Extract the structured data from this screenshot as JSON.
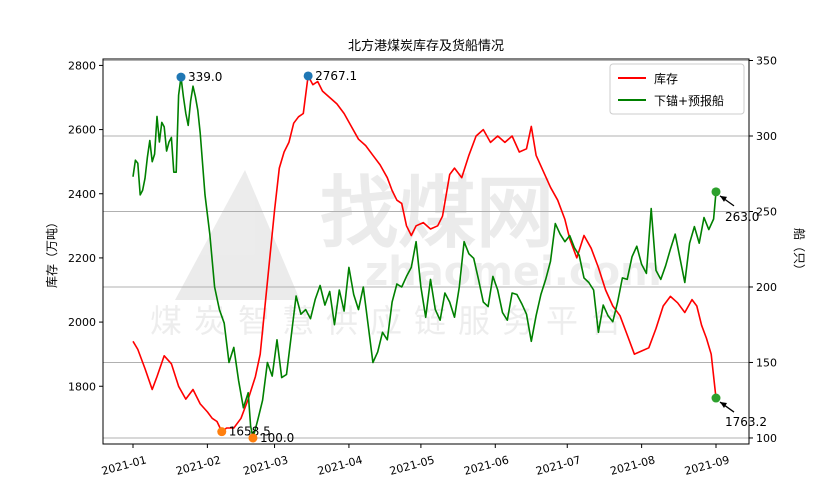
{
  "chart_data": {
    "type": "line",
    "title": "北方港煤炭库存及货船情况",
    "ylabel_left": "库存（万吨）",
    "ylabel_right": "船（只）",
    "xlabel": "",
    "watermark": {
      "brand": "找煤网",
      "domain": "zhaomei.com",
      "slogan": "煤炭智慧供应链服务平台"
    },
    "legend": {
      "position": "top-right",
      "items": [
        "库存",
        "下锚+预报船"
      ]
    },
    "x_ticks": [
      "2021-01",
      "2021-02",
      "2021-03",
      "2021-04",
      "2021-05",
      "2021-06",
      "2021-07",
      "2021-08",
      "2021-09"
    ],
    "y_left": {
      "ticks": [
        1800,
        2000,
        2200,
        2400,
        2600,
        2800
      ],
      "range": [
        1620,
        2820
      ]
    },
    "y_right": {
      "ticks": [
        100,
        150,
        200,
        250,
        300,
        350
      ],
      "range": [
        96,
        351
      ]
    },
    "grid": "horizontal-right-axis",
    "colors": {
      "stock": "#ff0000",
      "ships": "#008000",
      "max_marker": "#1f77b4",
      "min_marker": "#ff7f0e",
      "last_marker": "#2ca02c"
    },
    "series": [
      {
        "name": "库存",
        "axis": "left",
        "points": [
          [
            "2021-01-01",
            1940
          ],
          [
            "2021-01-03",
            1915
          ],
          [
            "2021-01-06",
            1855
          ],
          [
            "2021-01-09",
            1790
          ],
          [
            "2021-01-11",
            1830
          ],
          [
            "2021-01-14",
            1895
          ],
          [
            "2021-01-17",
            1870
          ],
          [
            "2021-01-20",
            1800
          ],
          [
            "2021-01-23",
            1760
          ],
          [
            "2021-01-26",
            1790
          ],
          [
            "2021-01-29",
            1745
          ],
          [
            "2021-02-01",
            1720
          ],
          [
            "2021-02-03",
            1700
          ],
          [
            "2021-02-05",
            1690
          ],
          [
            "2021-02-07",
            1658.5
          ],
          [
            "2021-02-09",
            1670
          ],
          [
            "2021-02-12",
            1670
          ],
          [
            "2021-02-15",
            1700
          ],
          [
            "2021-02-18",
            1760
          ],
          [
            "2021-02-21",
            1830
          ],
          [
            "2021-02-23",
            1900
          ],
          [
            "2021-02-25",
            2050
          ],
          [
            "2021-02-27",
            2200
          ],
          [
            "2021-03-01",
            2350
          ],
          [
            "2021-03-03",
            2480
          ],
          [
            "2021-03-05",
            2530
          ],
          [
            "2021-03-07",
            2560
          ],
          [
            "2021-03-09",
            2620
          ],
          [
            "2021-03-11",
            2640
          ],
          [
            "2021-03-13",
            2650
          ],
          [
            "2021-03-15",
            2767.1
          ],
          [
            "2021-03-17",
            2740
          ],
          [
            "2021-03-19",
            2750
          ],
          [
            "2021-03-21",
            2720
          ],
          [
            "2021-03-24",
            2700
          ],
          [
            "2021-03-27",
            2680
          ],
          [
            "2021-03-30",
            2650
          ],
          [
            "2021-04-02",
            2610
          ],
          [
            "2021-04-05",
            2570
          ],
          [
            "2021-04-08",
            2550
          ],
          [
            "2021-04-11",
            2520
          ],
          [
            "2021-04-14",
            2490
          ],
          [
            "2021-04-17",
            2450
          ],
          [
            "2021-04-19",
            2410
          ],
          [
            "2021-04-21",
            2380
          ],
          [
            "2021-04-23",
            2370
          ],
          [
            "2021-04-25",
            2300
          ],
          [
            "2021-04-27",
            2270
          ],
          [
            "2021-04-29",
            2300
          ],
          [
            "2021-05-02",
            2310
          ],
          [
            "2021-05-05",
            2290
          ],
          [
            "2021-05-08",
            2300
          ],
          [
            "2021-05-10",
            2330
          ],
          [
            "2021-05-13",
            2460
          ],
          [
            "2021-05-15",
            2480
          ],
          [
            "2021-05-18",
            2450
          ],
          [
            "2021-05-21",
            2520
          ],
          [
            "2021-05-24",
            2580
          ],
          [
            "2021-05-27",
            2600
          ],
          [
            "2021-05-30",
            2560
          ],
          [
            "2021-06-02",
            2580
          ],
          [
            "2021-06-05",
            2560
          ],
          [
            "2021-06-08",
            2580
          ],
          [
            "2021-06-11",
            2530
          ],
          [
            "2021-06-14",
            2540
          ],
          [
            "2021-06-16",
            2610
          ],
          [
            "2021-06-18",
            2520
          ],
          [
            "2021-06-21",
            2470
          ],
          [
            "2021-06-24",
            2420
          ],
          [
            "2021-06-27",
            2380
          ],
          [
            "2021-06-30",
            2320
          ],
          [
            "2021-07-02",
            2260
          ],
          [
            "2021-07-05",
            2200
          ],
          [
            "2021-07-08",
            2270
          ],
          [
            "2021-07-11",
            2230
          ],
          [
            "2021-07-14",
            2170
          ],
          [
            "2021-07-17",
            2100
          ],
          [
            "2021-07-20",
            2050
          ],
          [
            "2021-07-23",
            2020
          ],
          [
            "2021-07-26",
            1960
          ],
          [
            "2021-07-29",
            1900
          ],
          [
            "2021-08-01",
            1910
          ],
          [
            "2021-08-04",
            1920
          ],
          [
            "2021-08-07",
            1980
          ],
          [
            "2021-08-10",
            2050
          ],
          [
            "2021-08-13",
            2080
          ],
          [
            "2021-08-16",
            2060
          ],
          [
            "2021-08-19",
            2030
          ],
          [
            "2021-08-22",
            2070
          ],
          [
            "2021-08-24",
            2050
          ],
          [
            "2021-08-26",
            1990
          ],
          [
            "2021-08-28",
            1950
          ],
          [
            "2021-08-30",
            1900
          ],
          [
            "2021-09-01",
            1763.2
          ]
        ]
      },
      {
        "name": "下锚+预报船",
        "axis": "right",
        "points": [
          [
            "2021-01-01",
            273
          ],
          [
            "2021-01-02",
            284
          ],
          [
            "2021-01-03",
            282
          ],
          [
            "2021-01-04",
            261
          ],
          [
            "2021-01-05",
            264
          ],
          [
            "2021-01-06",
            272
          ],
          [
            "2021-01-07",
            286
          ],
          [
            "2021-01-08",
            297
          ],
          [
            "2021-01-09",
            283
          ],
          [
            "2021-01-10",
            288
          ],
          [
            "2021-01-11",
            313
          ],
          [
            "2021-01-12",
            296
          ],
          [
            "2021-01-13",
            309
          ],
          [
            "2021-01-14",
            306
          ],
          [
            "2021-01-15",
            290
          ],
          [
            "2021-01-16",
            296
          ],
          [
            "2021-01-17",
            299
          ],
          [
            "2021-01-18",
            276
          ],
          [
            "2021-01-19",
            276
          ],
          [
            "2021-01-20",
            327
          ],
          [
            "2021-01-21",
            339
          ],
          [
            "2021-01-22",
            326
          ],
          [
            "2021-01-23",
            315
          ],
          [
            "2021-01-24",
            307
          ],
          [
            "2021-01-25",
            323
          ],
          [
            "2021-01-26",
            333
          ],
          [
            "2021-01-27",
            326
          ],
          [
            "2021-01-28",
            317
          ],
          [
            "2021-01-29",
            302
          ],
          [
            "2021-01-31",
            261
          ],
          [
            "2021-02-02",
            235
          ],
          [
            "2021-02-04",
            200
          ],
          [
            "2021-02-06",
            185
          ],
          [
            "2021-02-08",
            176
          ],
          [
            "2021-02-10",
            150
          ],
          [
            "2021-02-12",
            160
          ],
          [
            "2021-02-14",
            138
          ],
          [
            "2021-02-16",
            120
          ],
          [
            "2021-02-18",
            130
          ],
          [
            "2021-02-19",
            108
          ],
          [
            "2021-02-20",
            100
          ],
          [
            "2021-02-22",
            112
          ],
          [
            "2021-02-24",
            125
          ],
          [
            "2021-02-26",
            150
          ],
          [
            "2021-02-28",
            141
          ],
          [
            "2021-03-02",
            165
          ],
          [
            "2021-03-04",
            140
          ],
          [
            "2021-03-06",
            142
          ],
          [
            "2021-03-08",
            168
          ],
          [
            "2021-03-10",
            194
          ],
          [
            "2021-03-12",
            182
          ],
          [
            "2021-03-14",
            185
          ],
          [
            "2021-03-16",
            179
          ],
          [
            "2021-03-18",
            192
          ],
          [
            "2021-03-20",
            201
          ],
          [
            "2021-03-22",
            188
          ],
          [
            "2021-03-24",
            197
          ],
          [
            "2021-03-26",
            175
          ],
          [
            "2021-03-28",
            198
          ],
          [
            "2021-03-30",
            184
          ],
          [
            "2021-04-01",
            213
          ],
          [
            "2021-04-03",
            195
          ],
          [
            "2021-04-05",
            185
          ],
          [
            "2021-04-07",
            200
          ],
          [
            "2021-04-09",
            175
          ],
          [
            "2021-04-11",
            150
          ],
          [
            "2021-04-13",
            157
          ],
          [
            "2021-04-15",
            170
          ],
          [
            "2021-04-17",
            165
          ],
          [
            "2021-04-19",
            190
          ],
          [
            "2021-04-21",
            202
          ],
          [
            "2021-04-23",
            200
          ],
          [
            "2021-04-25",
            207
          ],
          [
            "2021-04-27",
            213
          ],
          [
            "2021-04-29",
            230
          ],
          [
            "2021-05-01",
            200
          ],
          [
            "2021-05-03",
            180
          ],
          [
            "2021-05-05",
            205
          ],
          [
            "2021-05-07",
            185
          ],
          [
            "2021-05-09",
            178
          ],
          [
            "2021-05-11",
            196
          ],
          [
            "2021-05-13",
            190
          ],
          [
            "2021-05-15",
            180
          ],
          [
            "2021-05-17",
            200
          ],
          [
            "2021-05-19",
            230
          ],
          [
            "2021-05-21",
            222
          ],
          [
            "2021-05-23",
            219
          ],
          [
            "2021-05-25",
            205
          ],
          [
            "2021-05-27",
            190
          ],
          [
            "2021-05-29",
            187
          ],
          [
            "2021-05-31",
            207
          ],
          [
            "2021-06-02",
            198
          ],
          [
            "2021-06-04",
            183
          ],
          [
            "2021-06-06",
            178
          ],
          [
            "2021-06-08",
            196
          ],
          [
            "2021-06-10",
            195
          ],
          [
            "2021-06-12",
            189
          ],
          [
            "2021-06-14",
            182
          ],
          [
            "2021-06-16",
            164
          ],
          [
            "2021-06-18",
            181
          ],
          [
            "2021-06-20",
            195
          ],
          [
            "2021-06-22",
            205
          ],
          [
            "2021-06-24",
            217
          ],
          [
            "2021-06-26",
            242
          ],
          [
            "2021-06-28",
            235
          ],
          [
            "2021-06-30",
            230
          ],
          [
            "2021-07-02",
            234
          ],
          [
            "2021-07-04",
            226
          ],
          [
            "2021-07-06",
            221
          ],
          [
            "2021-07-08",
            206
          ],
          [
            "2021-07-10",
            203
          ],
          [
            "2021-07-12",
            198
          ],
          [
            "2021-07-14",
            170
          ],
          [
            "2021-07-16",
            188
          ],
          [
            "2021-07-18",
            181
          ],
          [
            "2021-07-20",
            177
          ],
          [
            "2021-07-22",
            190
          ],
          [
            "2021-07-24",
            206
          ],
          [
            "2021-07-26",
            205
          ],
          [
            "2021-07-28",
            220
          ],
          [
            "2021-07-30",
            227
          ],
          [
            "2021-08-01",
            215
          ],
          [
            "2021-08-03",
            209
          ],
          [
            "2021-08-05",
            252
          ],
          [
            "2021-08-07",
            211
          ],
          [
            "2021-08-09",
            205
          ],
          [
            "2021-08-11",
            214
          ],
          [
            "2021-08-13",
            225
          ],
          [
            "2021-08-15",
            235
          ],
          [
            "2021-08-17",
            219
          ],
          [
            "2021-08-19",
            203
          ],
          [
            "2021-08-21",
            229
          ],
          [
            "2021-08-23",
            240
          ],
          [
            "2021-08-25",
            229
          ],
          [
            "2021-08-27",
            246
          ],
          [
            "2021-08-29",
            238
          ],
          [
            "2021-08-31",
            245
          ],
          [
            "2021-09-01",
            263
          ]
        ]
      }
    ],
    "annotations": [
      {
        "label": "339.0",
        "series": "下锚+预报船",
        "date": "2021-01-21",
        "value": 339.0,
        "marker": "max"
      },
      {
        "label": "2767.1",
        "series": "库存",
        "date": "2021-03-15",
        "value": 2767.1,
        "marker": "max"
      },
      {
        "label": "1658.5",
        "series": "库存",
        "date": "2021-02-07",
        "value": 1658.5,
        "marker": "min"
      },
      {
        "label": "100.0",
        "series": "下锚+预报船",
        "date": "2021-02-20",
        "value": 100.0,
        "marker": "min"
      },
      {
        "label": "263.0",
        "series": "下锚+预报船",
        "date": "2021-09-01",
        "value": 263.0,
        "marker": "last"
      },
      {
        "label": "1763.2",
        "series": "库存",
        "date": "2021-09-01",
        "value": 1763.2,
        "marker": "last"
      }
    ]
  }
}
